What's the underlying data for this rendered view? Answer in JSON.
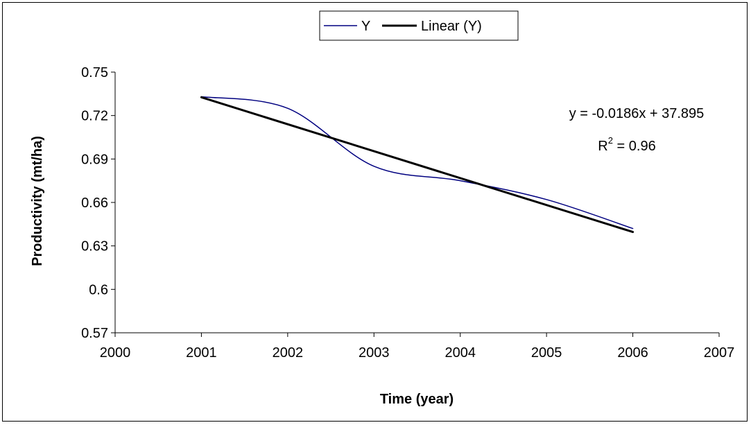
{
  "chart_data": {
    "type": "line",
    "title": "",
    "xlabel": "Time (year)",
    "ylabel": "Productivity (mt/ha)",
    "xlim": [
      2000,
      2007
    ],
    "ylim": [
      0.57,
      0.75
    ],
    "xticks": [
      2000,
      2001,
      2002,
      2003,
      2004,
      2005,
      2006,
      2007
    ],
    "yticks": [
      "0.57",
      "0.6",
      "0.63",
      "0.66",
      "0.69",
      "0.72",
      "0.75"
    ],
    "grid": false,
    "legend_position": "top-center",
    "series": [
      {
        "name": "Y",
        "color": "#000080",
        "smooth": true,
        "x": [
          2001,
          2002,
          2003,
          2004,
          2005,
          2006
        ],
        "y": [
          0.733,
          0.725,
          0.685,
          0.675,
          0.662,
          0.642
        ]
      },
      {
        "name": "Linear (Y)",
        "color": "#000000",
        "x": [
          2001,
          2006
        ],
        "y": [
          0.7326,
          0.6396
        ]
      }
    ],
    "annotations": {
      "equation": "y = -0.0186x + 37.895",
      "r2_prefix": "R",
      "r2_sup": "2",
      "r2_suffix": " = 0.96"
    }
  }
}
